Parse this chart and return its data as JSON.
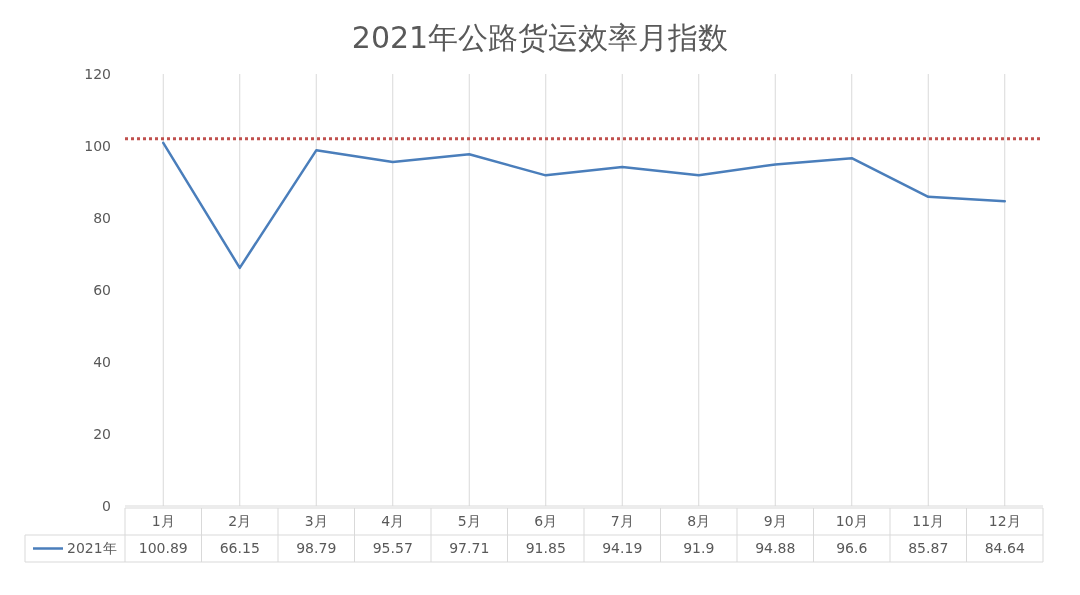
{
  "chart_data": {
    "type": "line",
    "title": "2021年公路货运效率月指数",
    "categories": [
      "1月",
      "2月",
      "3月",
      "4月",
      "5月",
      "6月",
      "7月",
      "8月",
      "9月",
      "10月",
      "11月",
      "12月"
    ],
    "series": [
      {
        "name": "2021年",
        "color": "#4a7ebb",
        "values": [
          100.89,
          66.15,
          98.79,
          95.57,
          97.71,
          91.85,
          94.19,
          91.9,
          94.88,
          96.6,
          85.87,
          84.64
        ]
      }
    ],
    "ylim": [
      0,
      120
    ],
    "yticks": [
      0,
      20,
      40,
      60,
      80,
      100,
      120
    ],
    "grid": "x",
    "legend": "bottom",
    "data_labels": true,
    "marker": "none",
    "line_style": "solid",
    "ref_lines": [
      {
        "axis": "y",
        "value": 102,
        "color": "#c0504d",
        "line_style": "dotted"
      }
    ]
  }
}
